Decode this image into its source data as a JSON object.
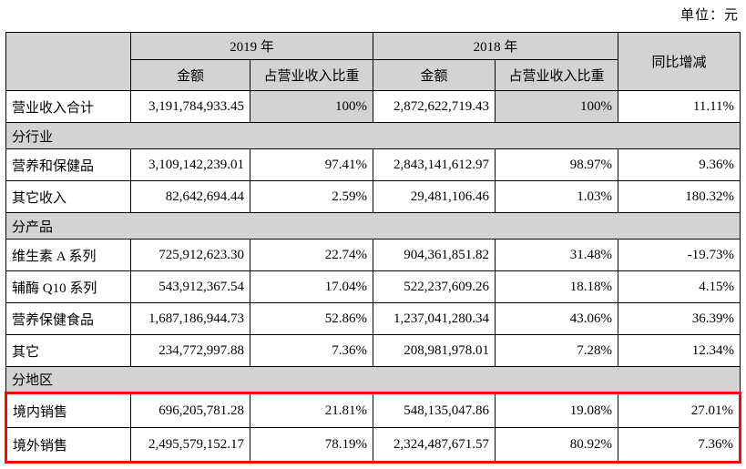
{
  "unit_label": "单位：元",
  "table": {
    "col_headers": {
      "year_2019": "2019 年",
      "year_2018": "2018 年",
      "amount": "金额",
      "ratio": "占营业收入比重",
      "yoy": "同比增减"
    },
    "rows": [
      {
        "type": "data",
        "label": "营业收入合计",
        "amount_2019": "3,191,784,933.45",
        "ratio_2019": "100%",
        "amount_2018": "2,872,622,719.43",
        "ratio_2018": "100%",
        "yoy": "11.11%",
        "shade_ratio": true
      },
      {
        "type": "section",
        "label": "分行业"
      },
      {
        "type": "data",
        "label": "营养和保健品",
        "amount_2019": "3,109,142,239.01",
        "ratio_2019": "97.41%",
        "amount_2018": "2,843,141,612.97",
        "ratio_2018": "98.97%",
        "yoy": "9.36%"
      },
      {
        "type": "data",
        "label": "其它收入",
        "amount_2019": "82,642,694.44",
        "ratio_2019": "2.59%",
        "amount_2018": "29,481,106.46",
        "ratio_2018": "1.03%",
        "yoy": "180.32%"
      },
      {
        "type": "section",
        "label": "分产品"
      },
      {
        "type": "data",
        "label": "维生素 A 系列",
        "amount_2019": "725,912,623.30",
        "ratio_2019": "22.74%",
        "amount_2018": "904,361,851.82",
        "ratio_2018": "31.48%",
        "yoy": "-19.73%"
      },
      {
        "type": "data",
        "label": "辅酶 Q10 系列",
        "amount_2019": "543,912,367.54",
        "ratio_2019": "17.04%",
        "amount_2018": "522,237,609.26",
        "ratio_2018": "18.18%",
        "yoy": "4.15%"
      },
      {
        "type": "data",
        "label": "营养保健食品",
        "amount_2019": "1,687,186,944.73",
        "ratio_2019": "52.86%",
        "amount_2018": "1,237,041,280.34",
        "ratio_2018": "43.06%",
        "yoy": "36.39%"
      },
      {
        "type": "data",
        "label": "其它",
        "amount_2019": "234,772,997.88",
        "ratio_2019": "7.36%",
        "amount_2018": "208,981,978.01",
        "ratio_2018": "7.28%",
        "yoy": "12.34%"
      },
      {
        "type": "section",
        "label": "分地区"
      },
      {
        "type": "data",
        "label": "境内销售",
        "amount_2019": "696,205,781.28",
        "ratio_2019": "21.81%",
        "amount_2018": "548,135,047.86",
        "ratio_2018": "19.08%",
        "yoy": "27.01%",
        "highlight": true
      },
      {
        "type": "data",
        "label": "境外销售",
        "amount_2019": "2,495,579,152.17",
        "ratio_2019": "78.19%",
        "amount_2018": "2,324,487,671.57",
        "ratio_2018": "80.92%",
        "yoy": "7.36%",
        "highlight": true
      }
    ]
  },
  "colors": {
    "header_bg": "#d3d3d3",
    "highlight_border": "#fb0603",
    "table_border": "#000000"
  }
}
